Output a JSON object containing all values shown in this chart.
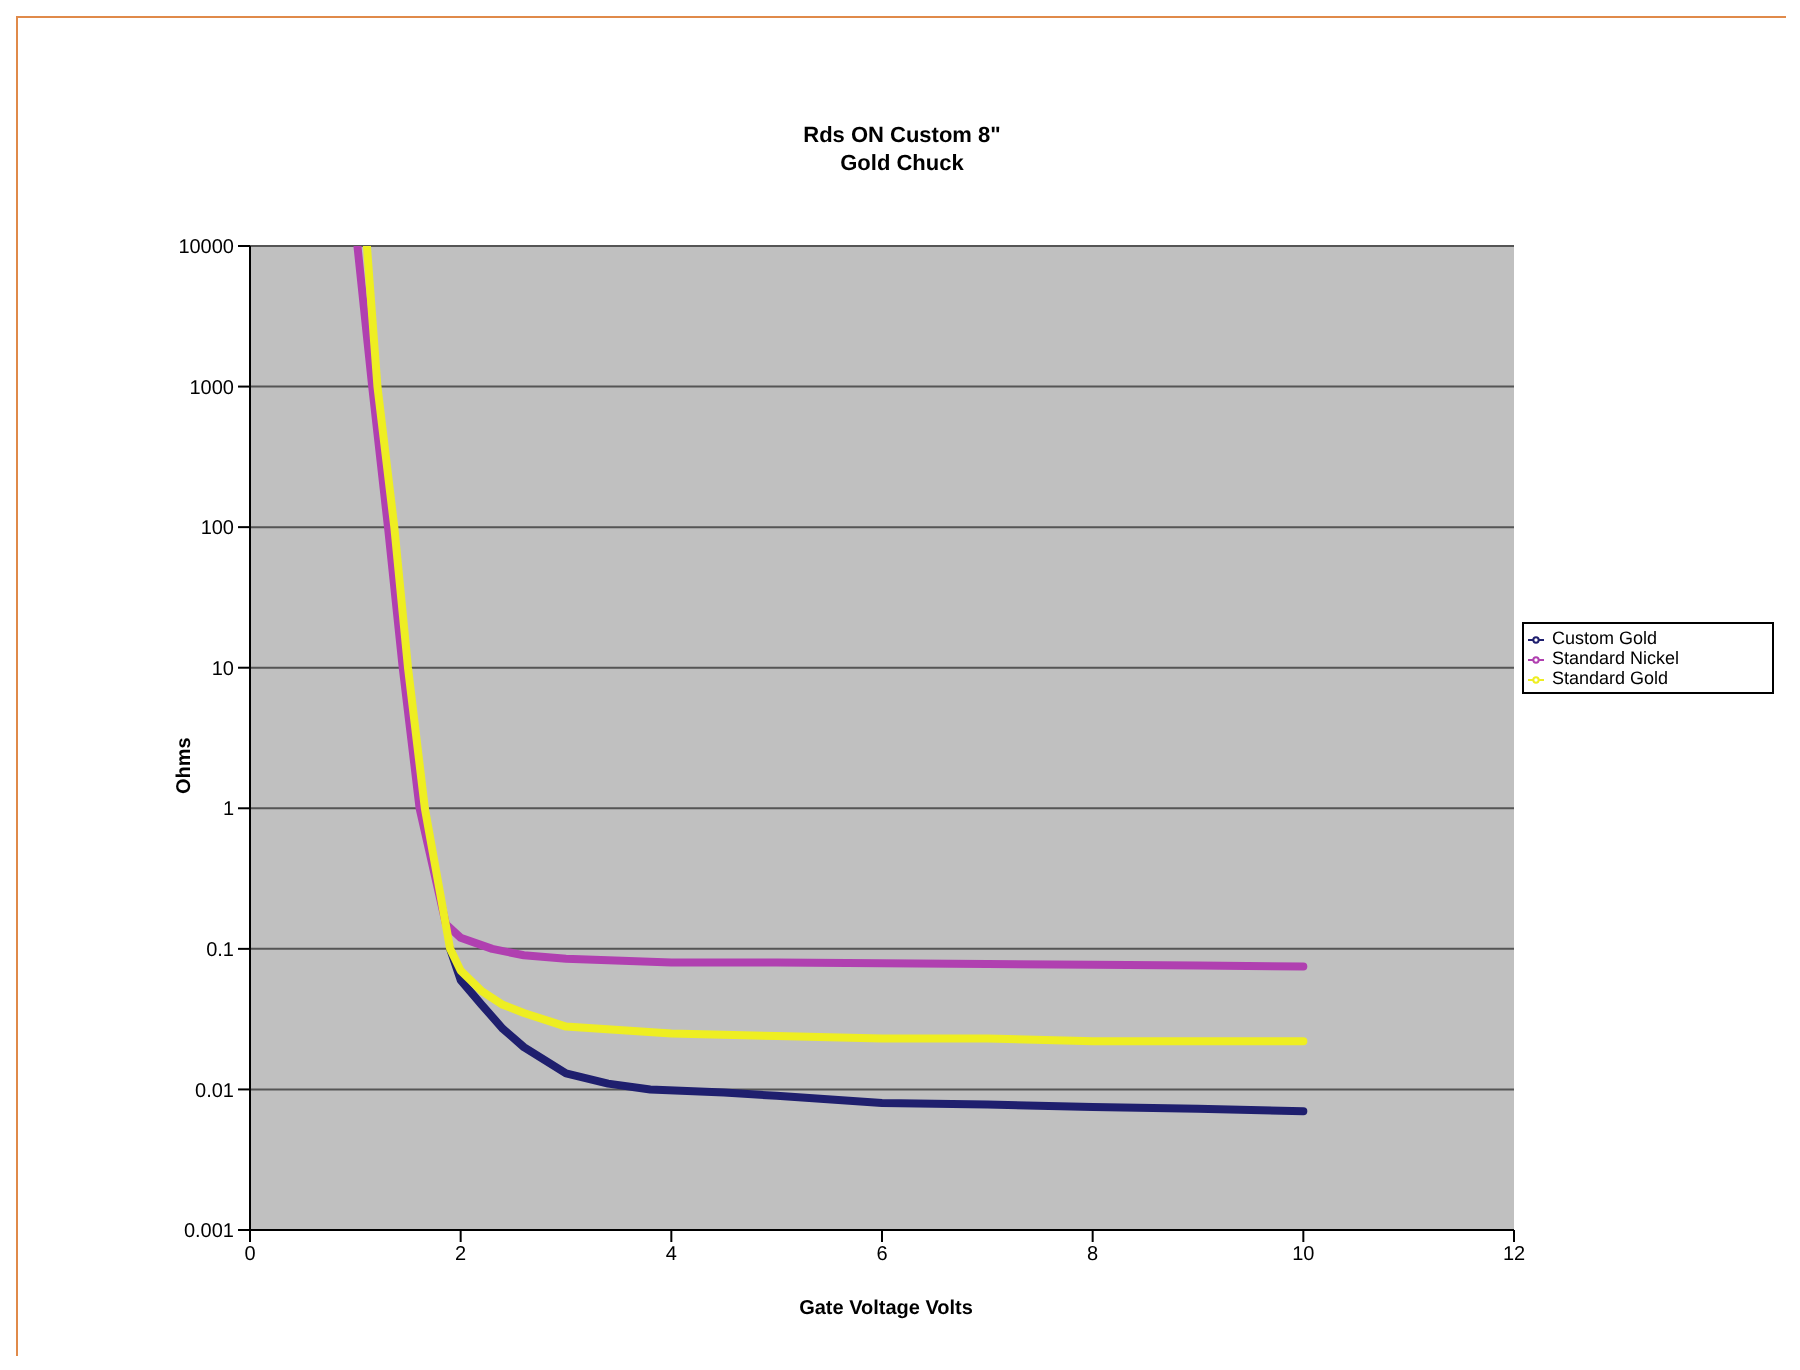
{
  "chart_data": {
    "type": "line",
    "title": "Rds ON Custom 8\"\nGold Chuck",
    "xlabel": "Gate Voltage Volts",
    "ylabel": "Ohms",
    "log": "y",
    "grid": "y",
    "legend": "right",
    "marker": "none",
    "line_style": "solid",
    "xlim": [
      0,
      12
    ],
    "xticks": [
      0,
      2,
      4,
      6,
      8,
      10,
      12
    ],
    "ylim": [
      0.001,
      10000
    ],
    "yticks": [
      0.001,
      0.01,
      0.1,
      1,
      10,
      100,
      1000,
      10000
    ],
    "series": [
      {
        "name": "Custom Gold",
        "color": "#1f1f6e",
        "x": [
          1.9,
          2.0,
          2.2,
          2.4,
          2.6,
          3.0,
          3.4,
          3.8,
          4.5,
          5,
          6,
          7,
          8,
          9,
          10
        ],
        "values": [
          0.1,
          0.06,
          0.04,
          0.027,
          0.02,
          0.013,
          0.011,
          0.01,
          0.0095,
          0.009,
          0.008,
          0.0078,
          0.0075,
          0.0073,
          0.007
        ]
      },
      {
        "name": "Standard Nickel",
        "color": "#b040b0",
        "x": [
          1.02,
          1.16,
          1.31,
          1.45,
          1.61,
          1.86,
          2.0,
          2.3,
          2.6,
          3,
          4,
          5,
          6,
          7,
          8,
          9,
          10
        ],
        "values": [
          10000,
          1000,
          100,
          10,
          1,
          0.15,
          0.12,
          0.1,
          0.09,
          0.085,
          0.08,
          0.08,
          0.079,
          0.078,
          0.077,
          0.076,
          0.075
        ]
      },
      {
        "name": "Standard Gold",
        "color": "#eeee22",
        "x": [
          1.11,
          1.21,
          1.37,
          1.5,
          1.66,
          1.9,
          2.0,
          2.2,
          2.4,
          2.6,
          3,
          4,
          5,
          6,
          7,
          8,
          9,
          10
        ],
        "values": [
          10000,
          1000,
          100,
          10,
          1,
          0.1,
          0.07,
          0.05,
          0.04,
          0.035,
          0.028,
          0.025,
          0.024,
          0.023,
          0.023,
          0.022,
          0.022,
          0.022
        ]
      }
    ]
  }
}
